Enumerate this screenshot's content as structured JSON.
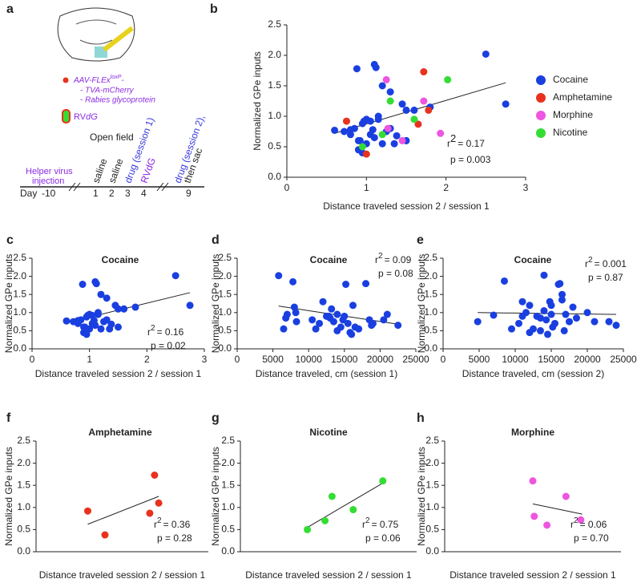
{
  "diagram": {
    "panel": "a",
    "aav": "AAV-FLEx",
    "aav_sup": "loxP",
    "aav_end": "-",
    "tva": "- TVA-mCherry",
    "rabies": "- Rabies glycoprotein",
    "rv": "RV",
    "rv_sub": "dG",
    "open_field": "Open field",
    "helper1": "Helper virus",
    "helper2": "injection",
    "day": "Day",
    "days": [
      "-10",
      "1",
      "2",
      "3",
      "4",
      "9"
    ],
    "steps": [
      "saline",
      "saline",
      "drug (session 1)",
      "RVdG",
      "drug (session 2),",
      "then sac"
    ]
  },
  "chart_data": [
    {
      "type": "scatter",
      "panel": "b",
      "xlabel": "Distance traveled session 2 / session 1",
      "ylabel": "Normalized GPe inputs",
      "xlim": [
        0,
        3
      ],
      "ylim": [
        0,
        2.5
      ],
      "xticks": [
        0,
        1,
        2,
        3
      ],
      "yticks": [
        {
          "value": 0,
          "label": "0.0"
        },
        0.5,
        {
          "value": 1,
          "label": "1.0"
        },
        1.5,
        {
          "value": 2,
          "label": "2.0"
        },
        2.5
      ],
      "legend": "right",
      "series": [
        {
          "name": "Cocaine",
          "color": "#1a3fe0",
          "x": [
            0.6,
            0.72,
            0.8,
            0.85,
            0.88,
            0.9,
            0.92,
            0.95,
            0.95,
            0.97,
            1.0,
            1.0,
            1.05,
            1.08,
            1.1,
            1.1,
            1.12,
            1.15,
            1.15,
            1.2,
            1.25,
            1.3,
            1.35,
            1.38,
            1.3,
            1.5,
            1.5,
            1.45,
            1.6,
            1.8,
            2.5,
            2.75,
            0.8,
            0.9,
            1.05,
            1.2
          ],
          "values": [
            0.77,
            0.75,
            0.7,
            0.8,
            1.78,
            0.45,
            0.6,
            0.4,
            0.88,
            0.92,
            0.95,
            0.55,
            0.7,
            0.78,
            1.85,
            0.65,
            1.8,
            0.95,
            1.0,
            1.5,
            0.75,
            1.4,
            0.55,
            0.68,
            0.8,
            1.1,
            0.6,
            1.2,
            1.1,
            1.15,
            2.02,
            1.2,
            0.78,
            0.6,
            0.92,
            0.55
          ]
        },
        {
          "name": "Amphetamine",
          "color": "#e8321e",
          "x": [
            0.75,
            1.0,
            1.65,
            1.72,
            1.78
          ],
          "values": [
            0.92,
            0.38,
            0.87,
            1.73,
            1.1
          ]
        },
        {
          "name": "Morphine",
          "color": "#ee55e0",
          "x": [
            1.25,
            1.27,
            1.45,
            1.72,
            1.93
          ],
          "values": [
            1.6,
            0.8,
            0.6,
            1.25,
            0.72
          ]
        },
        {
          "name": "Nicotine",
          "color": "#33dd33",
          "x": [
            0.95,
            1.2,
            1.3,
            1.6,
            2.02
          ],
          "values": [
            0.5,
            0.7,
            1.25,
            0.95,
            1.6
          ]
        }
      ],
      "fit": {
        "x": [
          0.6,
          2.75
        ],
        "y": [
          0.72,
          1.55
        ]
      },
      "stats": {
        "r": "r",
        "sup": "2",
        "r2": "= 0.17",
        "p": "p = 0.003"
      }
    },
    {
      "type": "scatter",
      "panel": "c",
      "title": "Cocaine",
      "xlabel": "Distance traveled session 2 / session 1",
      "ylabel": "Normalized GPe inputs",
      "xlim": [
        0,
        3
      ],
      "ylim": [
        0,
        2.5
      ],
      "xticks": [
        0,
        1,
        2,
        3
      ],
      "yticks": [
        {
          "value": 0,
          "label": "0.0"
        },
        0.5,
        {
          "value": 1,
          "label": "1.0"
        },
        1.5,
        {
          "value": 2,
          "label": "2.0"
        },
        2.5
      ],
      "series": [
        {
          "color": "#1a3fe0",
          "x": [
            0.6,
            0.72,
            0.8,
            0.85,
            0.88,
            0.9,
            0.92,
            0.95,
            0.95,
            0.97,
            1.0,
            1.0,
            1.05,
            1.08,
            1.1,
            1.1,
            1.12,
            1.15,
            1.15,
            1.2,
            1.25,
            1.3,
            1.35,
            1.38,
            1.3,
            1.5,
            1.5,
            1.45,
            1.6,
            1.8,
            2.5,
            2.75,
            0.8,
            0.9,
            1.05,
            1.2
          ],
          "values": [
            0.77,
            0.75,
            0.7,
            0.8,
            1.78,
            0.45,
            0.6,
            0.4,
            0.88,
            0.92,
            0.95,
            0.55,
            0.7,
            0.78,
            1.85,
            0.65,
            1.8,
            0.95,
            1.0,
            1.5,
            0.75,
            1.4,
            0.55,
            0.68,
            0.8,
            1.1,
            0.6,
            1.2,
            1.1,
            1.15,
            2.02,
            1.2,
            0.78,
            0.6,
            0.92,
            0.55
          ]
        }
      ],
      "fit": {
        "x": [
          0.6,
          2.75
        ],
        "y": [
          0.72,
          1.55
        ]
      },
      "stats": {
        "r": "r",
        "sup": "2",
        "r2": "= 0.16",
        "p": "p = 0.02"
      }
    },
    {
      "type": "scatter",
      "panel": "d",
      "title": "Cocaine",
      "xlabel": "Distance traveled, cm (session 1)",
      "ylabel": "Normalized GPe inputs",
      "xlim": [
        0,
        25000
      ],
      "ylim": [
        0,
        2.5
      ],
      "xticks": [
        0,
        5000,
        10000,
        15000,
        20000,
        25000
      ],
      "yticks": [
        {
          "value": 0,
          "label": "0.0"
        },
        0.5,
        {
          "value": 1,
          "label": "1.0"
        },
        1.5,
        {
          "value": 2,
          "label": "2.0"
        },
        2.5
      ],
      "series": [
        {
          "color": "#1a3fe0",
          "x": [
            5800,
            6500,
            6800,
            7000,
            7800,
            8000,
            8200,
            8300,
            10500,
            11000,
            11500,
            12000,
            12500,
            13000,
            13200,
            13500,
            14000,
            14000,
            14500,
            15000,
            15200,
            15500,
            15800,
            16000,
            16200,
            16500,
            17000,
            18000,
            18500,
            18800,
            19000,
            20500,
            21000,
            22500,
            12800,
            14800
          ],
          "values": [
            2.02,
            0.55,
            0.85,
            0.95,
            1.85,
            1.15,
            1.0,
            0.75,
            0.8,
            0.55,
            0.7,
            1.3,
            0.9,
            0.85,
            1.1,
            0.75,
            0.5,
            0.95,
            0.6,
            0.9,
            1.78,
            0.7,
            0.45,
            0.4,
            1.2,
            0.6,
            0.55,
            1.8,
            0.8,
            0.65,
            0.7,
            0.8,
            0.95,
            0.65,
            0.9,
            0.8
          ]
        }
      ],
      "fit": {
        "x": [
          5800,
          22500
        ],
        "y": [
          1.18,
          0.68
        ]
      },
      "stats": {
        "r": "r",
        "sup": "2",
        "r2": "= 0.09",
        "p": "p = 0.08"
      }
    },
    {
      "type": "scatter",
      "panel": "e",
      "title": "Cocaine",
      "xlabel": "Distance traveled, cm (session 2)",
      "ylabel": "Normalized GPe inputs",
      "xlim": [
        0,
        25000
      ],
      "ylim": [
        0,
        2.5
      ],
      "xticks": [
        0,
        5000,
        10000,
        15000,
        20000,
        25000
      ],
      "yticks": [
        {
          "value": 0,
          "label": "0.0"
        },
        0.5,
        {
          "value": 1,
          "label": "1.0"
        },
        1.5,
        {
          "value": 2,
          "label": "2.0"
        },
        2.5
      ],
      "series": [
        {
          "color": "#1a3fe0",
          "x": [
            4800,
            7000,
            8500,
            9500,
            10500,
            11000,
            11000,
            11500,
            12000,
            12500,
            13000,
            13500,
            13500,
            14000,
            14000,
            14300,
            14500,
            14800,
            15000,
            15200,
            15500,
            16000,
            16200,
            16500,
            16500,
            16800,
            17000,
            17500,
            18000,
            18500,
            20000,
            21000,
            23000,
            24000,
            12000,
            15000
          ],
          "values": [
            0.75,
            0.93,
            1.87,
            0.55,
            0.7,
            1.3,
            0.9,
            1.0,
            1.2,
            0.55,
            0.9,
            0.85,
            0.5,
            2.03,
            1.05,
            0.8,
            0.4,
            1.3,
            0.95,
            0.6,
            0.7,
            1.78,
            1.8,
            1.5,
            1.35,
            0.5,
            0.95,
            0.75,
            1.15,
            0.85,
            1.0,
            0.75,
            0.75,
            0.65,
            0.45,
            1.2
          ]
        }
      ],
      "fit": {
        "x": [
          4800,
          24000
        ],
        "y": [
          1.0,
          0.95
        ]
      },
      "stats": {
        "r": "r",
        "sup": "2",
        "r2": "= 0.001",
        "p": "p = 0.87"
      }
    },
    {
      "type": "scatter",
      "panel": "f",
      "title": "Amphetamine",
      "xlabel": "Distance traveled session 2 / session 1",
      "ylabel": "Normalized GPe inputs",
      "xlim": [
        0,
        2.5
      ],
      "ylim": [
        0,
        2.5
      ],
      "yticks": [
        {
          "value": 0,
          "label": "0.0"
        },
        0.5,
        {
          "value": 1,
          "label": "1.0"
        },
        1.5,
        {
          "value": 2,
          "label": "2.0"
        },
        2.5
      ],
      "series": [
        {
          "color": "#e8321e",
          "x": [
            0.75,
            1.0,
            1.65,
            1.72,
            1.78
          ],
          "values": [
            0.92,
            0.38,
            0.87,
            1.73,
            1.1
          ]
        }
      ],
      "fit": {
        "x": [
          0.75,
          1.78
        ],
        "y": [
          0.62,
          1.25
        ]
      },
      "stats": {
        "r": "r",
        "sup": "2",
        "r2": "= 0.36",
        "p": "p = 0.28"
      }
    },
    {
      "type": "scatter",
      "panel": "g",
      "title": "Nicotine",
      "xlabel": "Distance traveled session 2 / session 1",
      "ylabel": "Normalized GPe inputs",
      "xlim": [
        0,
        2.5
      ],
      "ylim": [
        0,
        2.5
      ],
      "yticks": [
        {
          "value": 0,
          "label": "0.0"
        },
        0.5,
        {
          "value": 1,
          "label": "1.0"
        },
        1.5,
        {
          "value": 2,
          "label": "2.0"
        },
        2.5
      ],
      "series": [
        {
          "color": "#33dd33",
          "x": [
            0.95,
            1.2,
            1.3,
            1.6,
            2.02
          ],
          "values": [
            0.5,
            0.7,
            1.25,
            0.95,
            1.6
          ]
        }
      ],
      "fit": {
        "x": [
          0.95,
          2.02
        ],
        "y": [
          0.55,
          1.55
        ]
      },
      "stats": {
        "r": "r",
        "sup": "2",
        "r2": "= 0.75",
        "p": "p = 0.06"
      }
    },
    {
      "type": "scatter",
      "panel": "h",
      "title": "Morphine",
      "xlabel": "Distance traveled session 2 / session 1",
      "ylabel": "Normalized GPe inputs",
      "xlim": [
        0,
        2.5
      ],
      "ylim": [
        0,
        2.5
      ],
      "yticks": [
        {
          "value": 0,
          "label": "0.0"
        },
        0.5,
        {
          "value": 1,
          "label": "1.0"
        },
        1.5,
        {
          "value": 2,
          "label": "2.0"
        },
        2.5
      ],
      "series": [
        {
          "color": "#ee55e0",
          "x": [
            1.25,
            1.27,
            1.45,
            1.72,
            1.93
          ],
          "values": [
            1.6,
            0.8,
            0.6,
            1.25,
            0.72
          ]
        }
      ],
      "fit": {
        "x": [
          1.25,
          1.95
        ],
        "y": [
          1.08,
          0.85
        ]
      },
      "stats": {
        "r": "r",
        "sup": "2",
        "r2": "= 0.06",
        "p": "p = 0.70"
      }
    }
  ]
}
